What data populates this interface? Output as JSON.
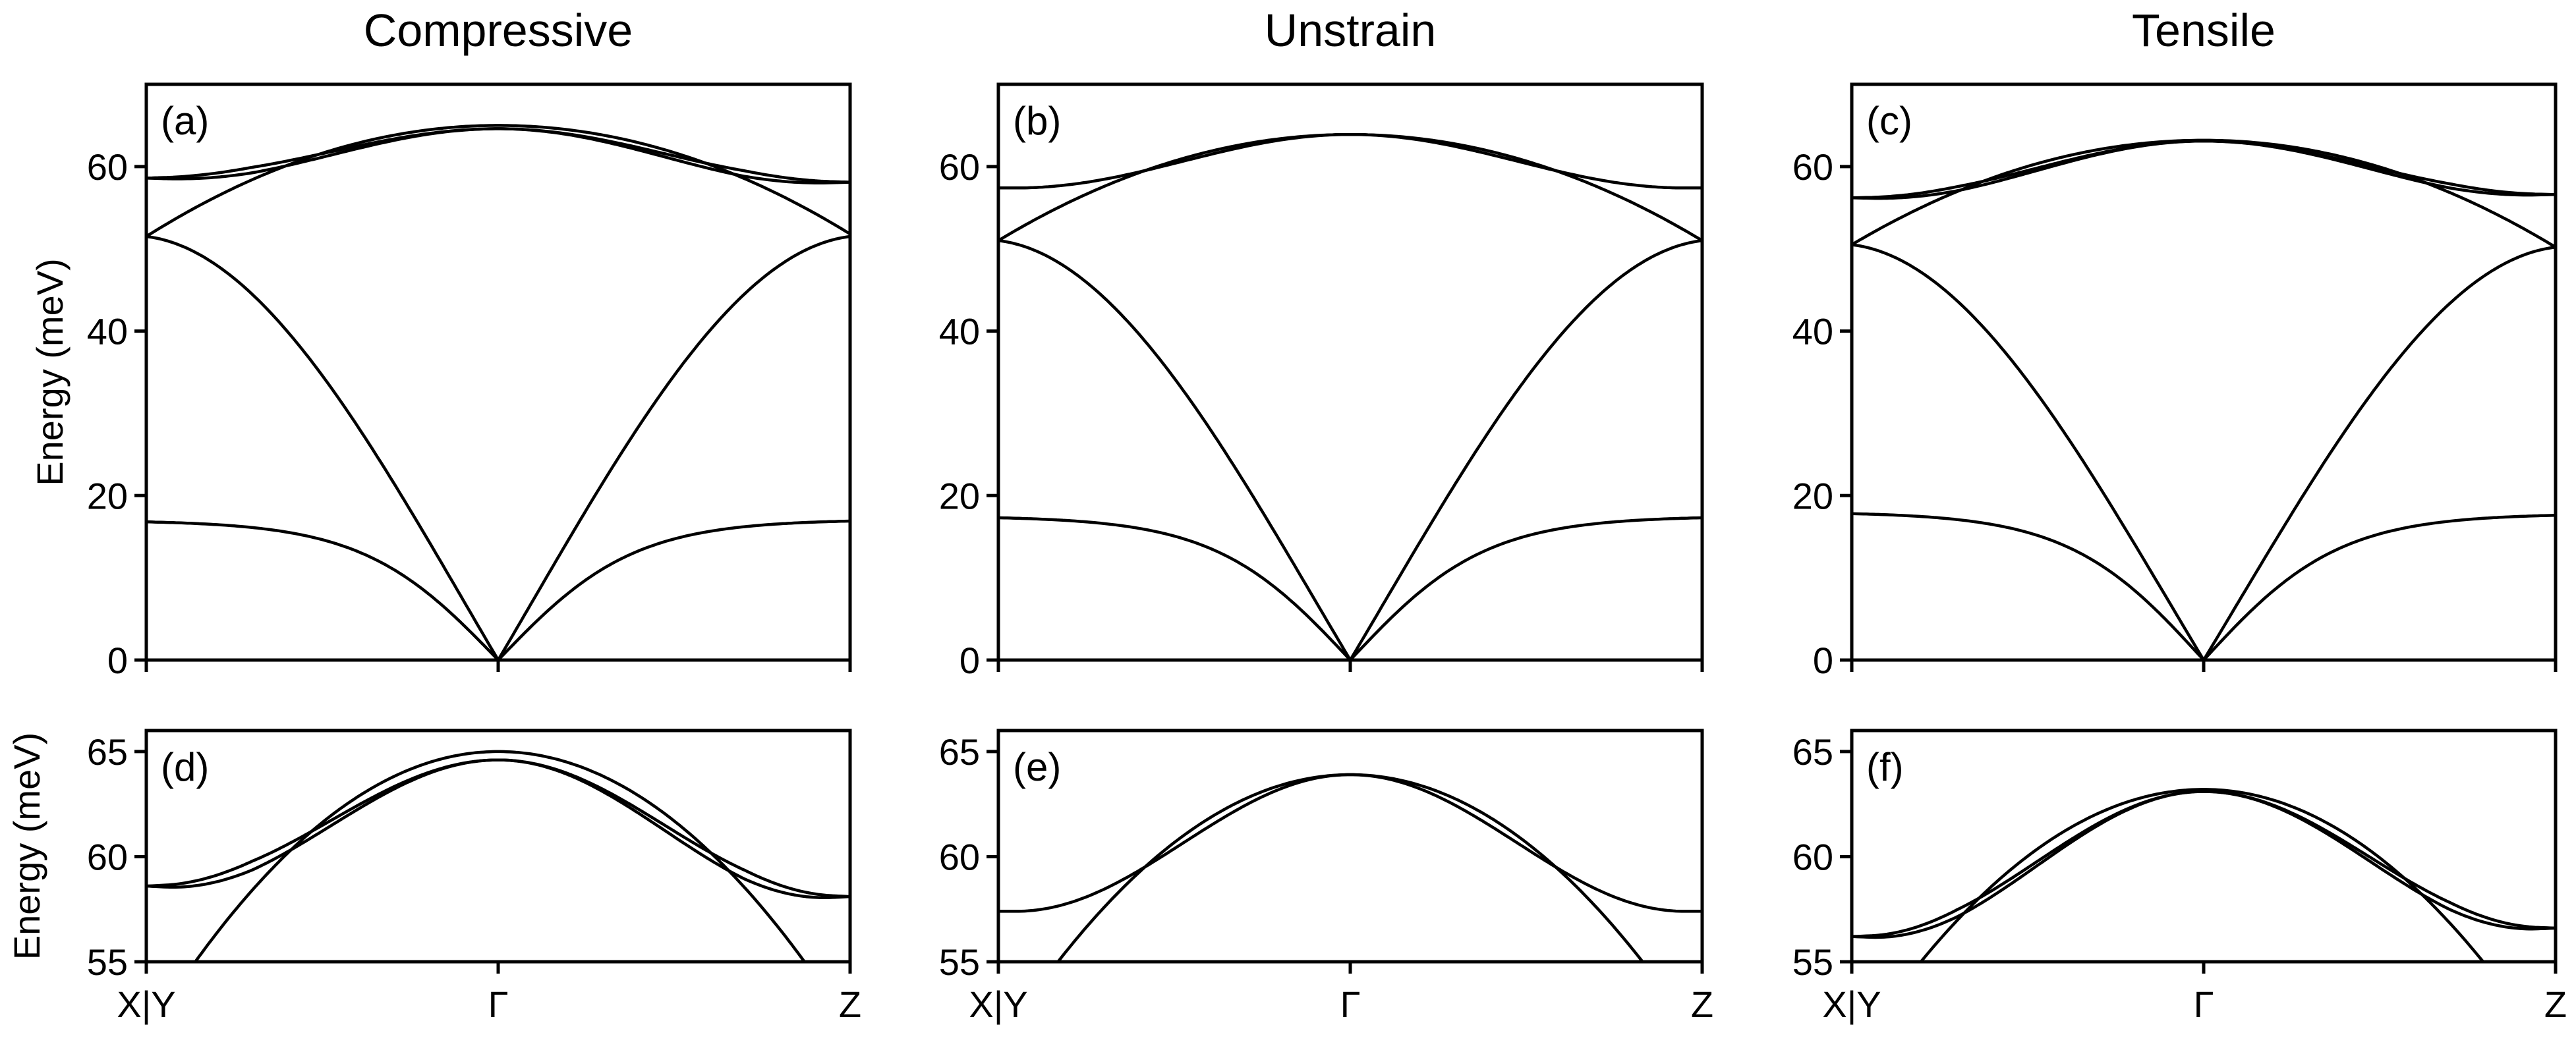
{
  "column_titles": [
    "Compressive",
    "Unstrain",
    "Tensile"
  ],
  "ylabel": "Energy (meV)",
  "x_tick_labels": [
    "X|Y",
    "Γ",
    "Z"
  ],
  "chart_data": [
    {
      "type": "line",
      "panel": "(a)",
      "ylim": [
        0,
        70
      ],
      "yticks": [
        0,
        20,
        40,
        60
      ],
      "xlim": [
        0,
        1
      ],
      "xticks": [
        0,
        0.5,
        1
      ],
      "series": [
        {
          "x": [
            0,
            0.5,
            1
          ],
          "y": [
            51.5,
            0,
            51.5
          ],
          "shape": "acoustic"
        },
        {
          "x": [
            0,
            0.5,
            1
          ],
          "y": [
            16.8,
            0,
            16.9
          ],
          "shape": "flat"
        },
        {
          "x": [
            0,
            0.5,
            1
          ],
          "y": [
            51.5,
            65.0,
            51.8
          ],
          "shape": "parabola"
        },
        {
          "x": [
            0,
            0.5,
            1
          ],
          "y": [
            58.6,
            64.6,
            58.1
          ],
          "shape": "hump",
          "dy": -0.4
        },
        {
          "x": [
            0,
            0.5,
            1
          ],
          "y": [
            58.6,
            64.6,
            58.1
          ],
          "shape": "hump",
          "dy": 0.4
        }
      ]
    },
    {
      "type": "line",
      "panel": "(b)",
      "ylim": [
        0,
        70
      ],
      "yticks": [
        0,
        20,
        40,
        60
      ],
      "xlim": [
        0,
        1
      ],
      "xticks": [
        0,
        0.5,
        1
      ],
      "series": [
        {
          "x": [
            0,
            0.5,
            1
          ],
          "y": [
            51.0,
            0,
            51.0
          ],
          "shape": "acoustic"
        },
        {
          "x": [
            0,
            0.5,
            1
          ],
          "y": [
            17.3,
            0,
            17.3
          ],
          "shape": "flat"
        },
        {
          "x": [
            0,
            0.5,
            1
          ],
          "y": [
            51.0,
            63.9,
            51.0
          ],
          "shape": "parabola"
        },
        {
          "x": [
            0,
            0.5,
            1
          ],
          "y": [
            57.4,
            63.9,
            57.4
          ],
          "shape": "hump",
          "dy": 0
        }
      ]
    },
    {
      "type": "line",
      "panel": "(c)",
      "ylim": [
        0,
        70
      ],
      "yticks": [
        0,
        20,
        40,
        60
      ],
      "xlim": [
        0,
        1
      ],
      "xticks": [
        0,
        0.5,
        1
      ],
      "series": [
        {
          "x": [
            0,
            0.5,
            1
          ],
          "y": [
            50.5,
            0,
            50.2
          ],
          "shape": "acoustic"
        },
        {
          "x": [
            0,
            0.5,
            1
          ],
          "y": [
            17.8,
            0,
            17.6
          ],
          "shape": "flat"
        },
        {
          "x": [
            0,
            0.5,
            1
          ],
          "y": [
            50.5,
            63.2,
            50.2
          ],
          "shape": "parabola"
        },
        {
          "x": [
            0,
            0.5,
            1
          ],
          "y": [
            56.2,
            63.1,
            56.6
          ],
          "shape": "hump",
          "dy": -0.3
        },
        {
          "x": [
            0,
            0.5,
            1
          ],
          "y": [
            56.2,
            63.1,
            56.6
          ],
          "shape": "hump",
          "dy": 0.3
        }
      ]
    },
    {
      "type": "line",
      "panel": "(d)",
      "ylim": [
        55,
        66
      ],
      "yticks": [
        55,
        60,
        65
      ],
      "xlim": [
        0,
        1
      ],
      "xticks": [
        0,
        0.5,
        1
      ],
      "series": [
        {
          "x": [
            0,
            0.5,
            1
          ],
          "y": [
            51.5,
            65.0,
            51.8
          ],
          "shape": "parabola"
        },
        {
          "x": [
            0,
            0.5,
            1
          ],
          "y": [
            58.6,
            64.6,
            58.1
          ],
          "shape": "hump",
          "dy": -0.25
        },
        {
          "x": [
            0,
            0.5,
            1
          ],
          "y": [
            58.6,
            64.6,
            58.1
          ],
          "shape": "hump",
          "dy": 0.25
        }
      ]
    },
    {
      "type": "line",
      "panel": "(e)",
      "ylim": [
        55,
        66
      ],
      "yticks": [
        55,
        60,
        65
      ],
      "xlim": [
        0,
        1
      ],
      "xticks": [
        0,
        0.5,
        1
      ],
      "series": [
        {
          "x": [
            0,
            0.5,
            1
          ],
          "y": [
            51.0,
            63.9,
            51.0
          ],
          "shape": "parabola"
        },
        {
          "x": [
            0,
            0.5,
            1
          ],
          "y": [
            57.4,
            63.9,
            57.4
          ],
          "shape": "hump",
          "dy": 0
        }
      ]
    },
    {
      "type": "line",
      "panel": "(f)",
      "ylim": [
        55,
        66
      ],
      "yticks": [
        55,
        60,
        65
      ],
      "xlim": [
        0,
        1
      ],
      "xticks": [
        0,
        0.5,
        1
      ],
      "series": [
        {
          "x": [
            0,
            0.5,
            1
          ],
          "y": [
            50.5,
            63.2,
            50.2
          ],
          "shape": "parabola"
        },
        {
          "x": [
            0,
            0.5,
            1
          ],
          "y": [
            56.2,
            63.1,
            56.6
          ],
          "shape": "hump",
          "dy": -0.2
        },
        {
          "x": [
            0,
            0.5,
            1
          ],
          "y": [
            56.2,
            63.1,
            56.6
          ],
          "shape": "hump",
          "dy": 0.2
        }
      ]
    }
  ]
}
